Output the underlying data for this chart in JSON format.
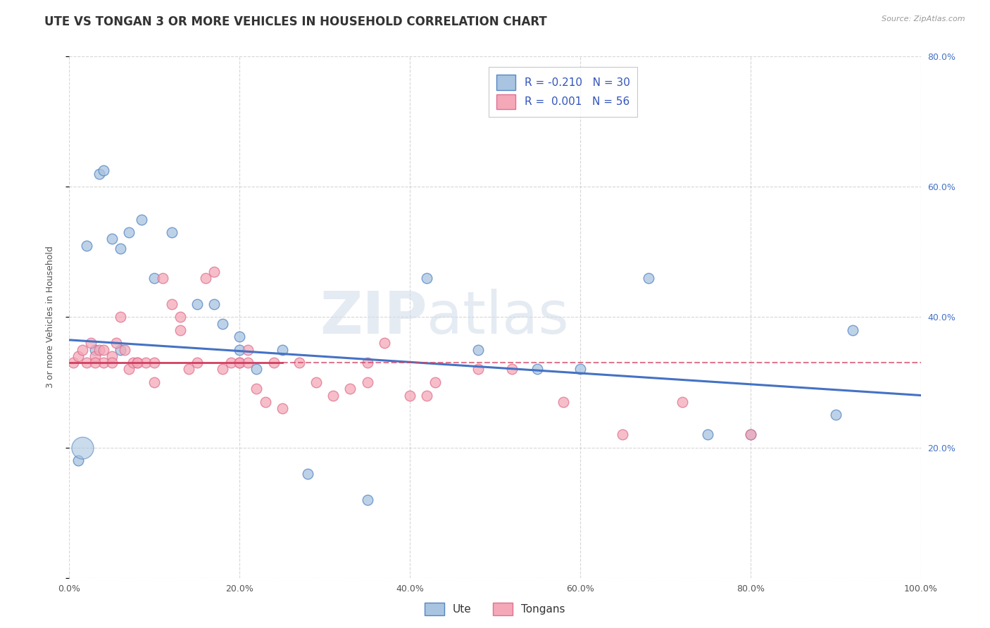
{
  "title": "UTE VS TONGAN 3 OR MORE VEHICLES IN HOUSEHOLD CORRELATION CHART",
  "source": "Source: ZipAtlas.com",
  "ylabel": "3 or more Vehicles in Household",
  "legend_labels": [
    "Ute",
    "Tongans"
  ],
  "ute_R": "-0.210",
  "ute_N": "30",
  "ton_R": "0.001",
  "ton_N": "56",
  "xlim": [
    0,
    100
  ],
  "ylim": [
    0,
    80
  ],
  "xticks": [
    0,
    20,
    40,
    60,
    80,
    100
  ],
  "xtick_labels": [
    "0.0%",
    "20.0%",
    "40.0%",
    "60.0%",
    "80.0%",
    "100.0%"
  ],
  "yticks": [
    0,
    20,
    40,
    60,
    80
  ],
  "ytick_labels_left": [
    "",
    "",
    "",
    "",
    ""
  ],
  "ytick_labels_right": [
    "",
    "20.0%",
    "40.0%",
    "60.0%",
    "80.0%"
  ],
  "watermark_zip": "ZIP",
  "watermark_atlas": "atlas",
  "ute_color": "#a8c4e0",
  "ton_color": "#f4a8b8",
  "ute_edge_color": "#5585c5",
  "ton_edge_color": "#e07090",
  "ute_line_color": "#4472c4",
  "ton_line_color": "#d04060",
  "background_color": "#ffffff",
  "ute_points_x": [
    2.0,
    3.5,
    4.0,
    5.0,
    6.0,
    7.0,
    8.5,
    10.0,
    12.0,
    15.0,
    17.0,
    20.0,
    20.0,
    22.0,
    28.0,
    35.0,
    42.0,
    55.0,
    60.0,
    68.0,
    75.0,
    80.0,
    90.0,
    92.0,
    1.0,
    3.0,
    6.0,
    25.0,
    18.0,
    48.0
  ],
  "ute_points_y": [
    51.0,
    62.0,
    62.5,
    52.0,
    50.5,
    53.0,
    55.0,
    46.0,
    53.0,
    42.0,
    42.0,
    35.0,
    37.0,
    32.0,
    16.0,
    12.0,
    46.0,
    32.0,
    32.0,
    46.0,
    22.0,
    22.0,
    25.0,
    38.0,
    18.0,
    35.0,
    35.0,
    35.0,
    39.0,
    35.0
  ],
  "ton_points_x": [
    0.5,
    1.0,
    1.5,
    2.0,
    2.5,
    3.0,
    3.5,
    4.0,
    5.0,
    5.5,
    6.0,
    6.5,
    7.0,
    7.5,
    8.0,
    9.0,
    10.0,
    11.0,
    12.0,
    13.0,
    14.0,
    15.0,
    16.0,
    17.0,
    18.0,
    19.0,
    20.0,
    21.0,
    22.0,
    23.0,
    24.0,
    25.0,
    27.0,
    29.0,
    31.0,
    33.0,
    35.0,
    37.0,
    40.0,
    43.0,
    48.0,
    52.0,
    58.0,
    65.0,
    72.0,
    80.0,
    3.0,
    4.0,
    5.0,
    8.0,
    10.0,
    13.0,
    20.0,
    21.0,
    35.0,
    42.0
  ],
  "ton_points_y": [
    33.0,
    34.0,
    35.0,
    33.0,
    36.0,
    34.0,
    35.0,
    33.0,
    34.0,
    36.0,
    40.0,
    35.0,
    32.0,
    33.0,
    33.0,
    33.0,
    30.0,
    46.0,
    42.0,
    38.0,
    32.0,
    33.0,
    46.0,
    47.0,
    32.0,
    33.0,
    33.0,
    35.0,
    29.0,
    27.0,
    33.0,
    26.0,
    33.0,
    30.0,
    28.0,
    29.0,
    30.0,
    36.0,
    28.0,
    30.0,
    32.0,
    32.0,
    27.0,
    22.0,
    27.0,
    22.0,
    33.0,
    35.0,
    33.0,
    33.0,
    33.0,
    40.0,
    33.0,
    33.0,
    33.0,
    28.0
  ],
  "ute_large_x": [
    1.5
  ],
  "ute_large_y": [
    20.0
  ],
  "ute_large_size": 500,
  "title_fontsize": 12,
  "axis_label_fontsize": 9,
  "tick_fontsize": 9,
  "legend_fontsize": 11
}
